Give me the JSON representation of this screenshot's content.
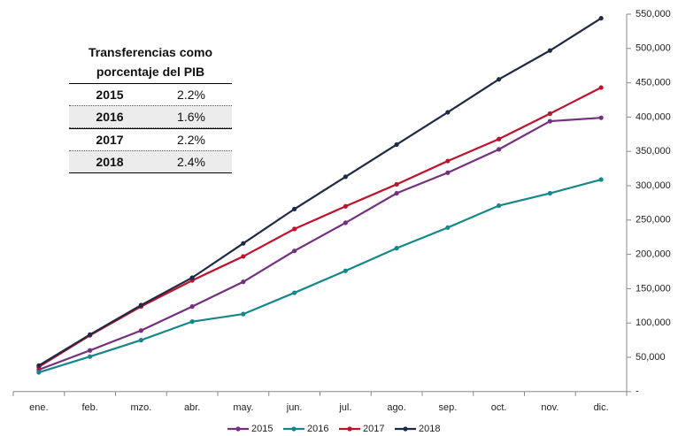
{
  "chart_data": {
    "type": "line",
    "categories": [
      "ene.",
      "feb.",
      "mzo.",
      "abr.",
      "may.",
      "jun.",
      "jul.",
      "ago.",
      "sep.",
      "oct.",
      "nov.",
      "dic."
    ],
    "series": [
      {
        "name": "2015",
        "color": "#74307e",
        "values": [
          32000,
          60000,
          89000,
          124000,
          160000,
          205000,
          246000,
          289000,
          319000,
          353000,
          394000,
          399000
        ]
      },
      {
        "name": "2016",
        "color": "#15878a",
        "values": [
          28000,
          51000,
          75000,
          102000,
          113000,
          144000,
          176000,
          209000,
          239000,
          271000,
          289000,
          309000
        ]
      },
      {
        "name": "2017",
        "color": "#c0122c",
        "values": [
          36000,
          82000,
          124000,
          162000,
          197000,
          237000,
          270000,
          302000,
          336000,
          368000,
          405000,
          443000
        ]
      },
      {
        "name": "2018",
        "color": "#1e2a46",
        "values": [
          38000,
          83000,
          126000,
          166000,
          216000,
          266000,
          313000,
          360000,
          407000,
          455000,
          497000,
          544000
        ]
      }
    ],
    "ylim": [
      0,
      550000
    ],
    "yticks": [
      {
        "value": 0,
        "label": "-"
      },
      {
        "value": 50000,
        "label": "50,000"
      },
      {
        "value": 100000,
        "label": "100,000"
      },
      {
        "value": 150000,
        "label": "150,000"
      },
      {
        "value": 200000,
        "label": "200,000"
      },
      {
        "value": 250000,
        "label": "250,000"
      },
      {
        "value": 300000,
        "label": "300,000"
      },
      {
        "value": 350000,
        "label": "350,000"
      },
      {
        "value": 400000,
        "label": "400,000"
      },
      {
        "value": 450000,
        "label": "450,000"
      },
      {
        "value": 500000,
        "label": "500,000"
      },
      {
        "value": 550000,
        "label": "550,000"
      }
    ],
    "y_axis_side": "right",
    "legend": "bottom",
    "inset_table": {
      "title": "Transferencias como porcentaje del PIB",
      "rows": [
        [
          "2015",
          "2.2%"
        ],
        [
          "2016",
          "1.6%"
        ],
        [
          "2017",
          "2.2%"
        ],
        [
          "2018",
          "2.4%"
        ]
      ]
    }
  }
}
